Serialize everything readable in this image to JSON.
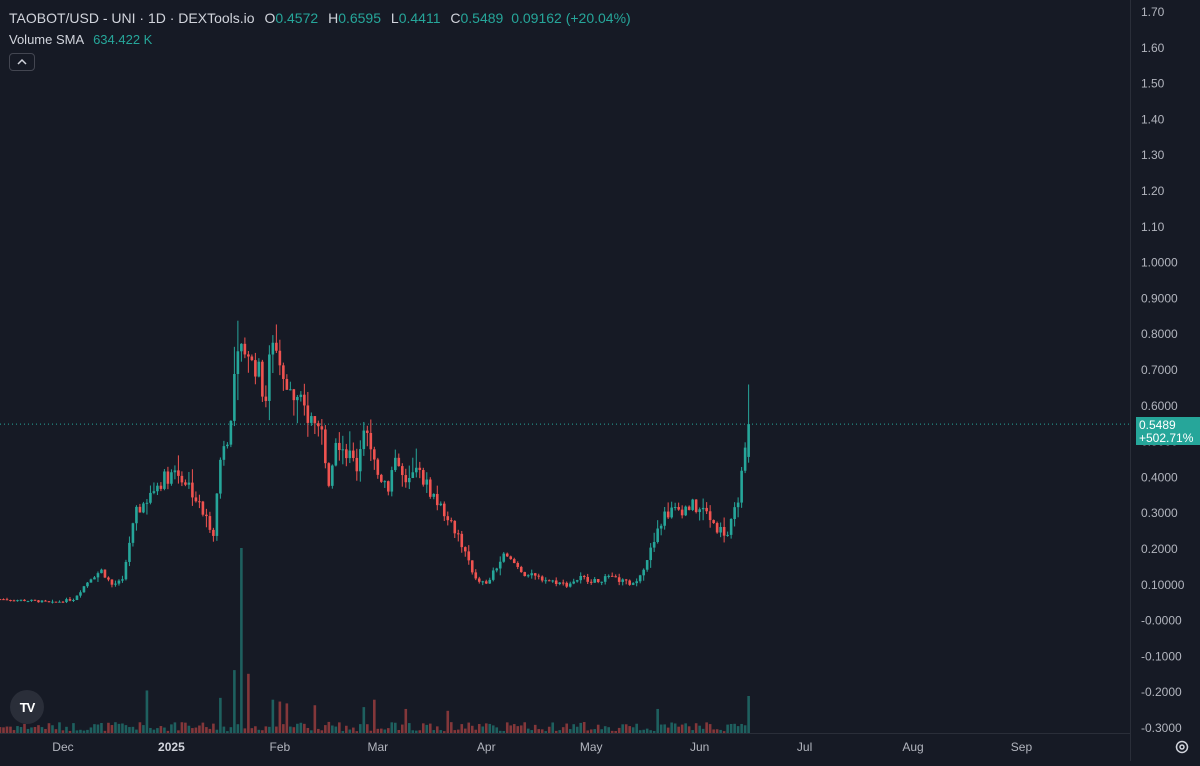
{
  "legend": {
    "title": "TAOBOT/USD - UNI · 1D · DEXTools.io",
    "ohlc": [
      {
        "label": "O",
        "value": "0.4572"
      },
      {
        "label": "H",
        "value": "0.6595"
      },
      {
        "label": "L",
        "value": "0.4411"
      },
      {
        "label": "C",
        "value": "0.5489"
      }
    ],
    "change": "0.09162 (+20.04%)",
    "volume_name": "Volume SMA",
    "volume_value": "634.422 K"
  },
  "price_tag": {
    "price": "0.5489",
    "percent": "+502.71%"
  },
  "logo_text": "TV",
  "colors": {
    "up": "#26a69a",
    "down": "#ef5350",
    "background": "#161a25",
    "grid": "#2a2e39",
    "text": "#b2b5be"
  },
  "chart_data": {
    "type": "candlestick",
    "y_ticks": [
      "1.70",
      "1.60",
      "1.50",
      "1.40",
      "1.30",
      "1.20",
      "1.10",
      "1.0000",
      "0.9000",
      "0.8000",
      "0.7000",
      "0.6000",
      "0.5000",
      "0.4000",
      "0.3000",
      "0.2000",
      "0.10000",
      "-0.0000",
      "-0.1000",
      "-0.2000",
      "-0.3000"
    ],
    "y_tick_values": [
      1.7,
      1.6,
      1.5,
      1.4,
      1.3,
      1.2,
      1.1,
      1.0,
      0.9,
      0.8,
      0.7,
      0.6,
      0.5,
      0.4,
      0.3,
      0.2,
      0.1,
      0.0,
      -0.1,
      -0.2,
      -0.3
    ],
    "ylim": [
      -0.3,
      1.7
    ],
    "x_ticks": [
      {
        "label": "Dec",
        "day": 0,
        "bold": false
      },
      {
        "label": "2025",
        "day": 31,
        "bold": true
      },
      {
        "label": "Feb",
        "day": 62,
        "bold": false
      },
      {
        "label": "Mar",
        "day": 90,
        "bold": false
      },
      {
        "label": "Apr",
        "day": 121,
        "bold": false
      },
      {
        "label": "May",
        "day": 151,
        "bold": false
      },
      {
        "label": "Jun",
        "day": 182,
        "bold": false
      },
      {
        "label": "Jul",
        "day": 212,
        "bold": false
      },
      {
        "label": "Aug",
        "day": 243,
        "bold": false
      },
      {
        "label": "Sep",
        "day": 274,
        "bold": false
      }
    ],
    "xlim_days": [
      -18,
      290
    ],
    "last_close": 0.5489,
    "anchors": [
      [
        -18,
        0.06
      ],
      [
        -8,
        0.055
      ],
      [
        -3,
        0.05
      ],
      [
        3,
        0.06
      ],
      [
        8,
        0.12
      ],
      [
        11,
        0.14
      ],
      [
        14,
        0.1
      ],
      [
        17,
        0.11
      ],
      [
        19,
        0.22
      ],
      [
        21,
        0.3
      ],
      [
        24,
        0.34
      ],
      [
        28,
        0.39
      ],
      [
        32,
        0.42
      ],
      [
        36,
        0.38
      ],
      [
        40,
        0.3
      ],
      [
        43,
        0.25
      ],
      [
        45,
        0.45
      ],
      [
        48,
        0.55
      ],
      [
        50,
        0.8
      ],
      [
        53,
        0.7
      ],
      [
        55,
        0.72
      ],
      [
        58,
        0.62
      ],
      [
        60,
        0.8
      ],
      [
        62,
        0.72
      ],
      [
        64,
        0.68
      ],
      [
        66,
        0.62
      ],
      [
        68,
        0.6
      ],
      [
        72,
        0.55
      ],
      [
        74,
        0.52
      ],
      [
        76,
        0.4
      ],
      [
        78,
        0.52
      ],
      [
        82,
        0.46
      ],
      [
        84,
        0.43
      ],
      [
        86,
        0.55
      ],
      [
        88,
        0.46
      ],
      [
        90,
        0.41
      ],
      [
        93,
        0.38
      ],
      [
        95,
        0.46
      ],
      [
        98,
        0.37
      ],
      [
        101,
        0.42
      ],
      [
        104,
        0.38
      ],
      [
        107,
        0.33
      ],
      [
        110,
        0.29
      ],
      [
        113,
        0.24
      ],
      [
        116,
        0.16
      ],
      [
        118,
        0.12
      ],
      [
        121,
        0.1
      ],
      [
        124,
        0.15
      ],
      [
        126,
        0.18
      ],
      [
        129,
        0.16
      ],
      [
        132,
        0.13
      ],
      [
        136,
        0.12
      ],
      [
        140,
        0.11
      ],
      [
        144,
        0.1
      ],
      [
        148,
        0.12
      ],
      [
        152,
        0.11
      ],
      [
        156,
        0.12
      ],
      [
        160,
        0.11
      ],
      [
        163,
        0.1
      ],
      [
        166,
        0.15
      ],
      [
        169,
        0.22
      ],
      [
        172,
        0.3
      ],
      [
        176,
        0.31
      ],
      [
        180,
        0.32
      ],
      [
        184,
        0.3
      ],
      [
        187,
        0.26
      ],
      [
        190,
        0.24
      ],
      [
        192,
        0.3
      ],
      [
        194,
        0.4
      ],
      [
        195,
        0.46
      ],
      [
        196,
        0.5489
      ]
    ],
    "volume_spikes": [
      [
        24,
        0.23
      ],
      [
        45,
        0.19
      ],
      [
        49,
        0.34
      ],
      [
        51,
        1.0
      ],
      [
        53,
        0.32
      ],
      [
        60,
        0.18
      ],
      [
        62,
        0.17
      ],
      [
        64,
        0.16
      ],
      [
        72,
        0.15
      ],
      [
        86,
        0.14
      ],
      [
        89,
        0.18
      ],
      [
        98,
        0.13
      ],
      [
        110,
        0.12
      ],
      [
        170,
        0.13
      ],
      [
        196,
        0.2
      ]
    ]
  }
}
